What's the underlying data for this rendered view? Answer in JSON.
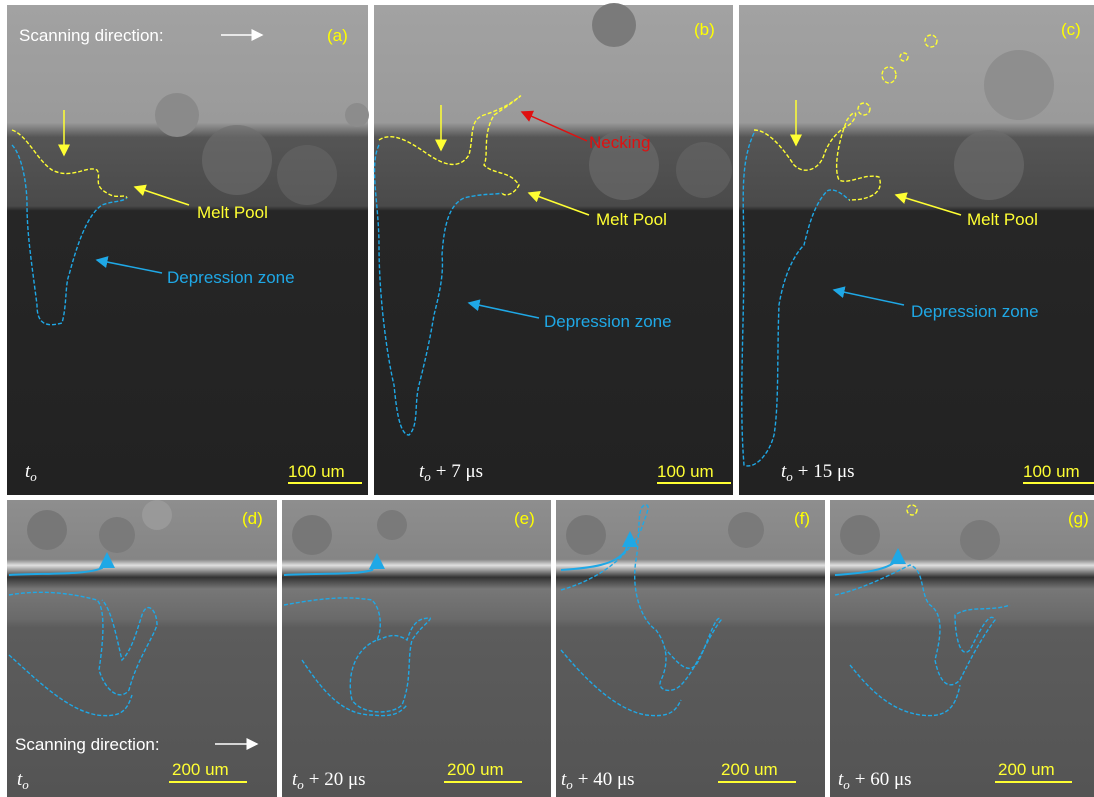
{
  "panels": [
    {
      "label": "(a)",
      "scanning_direction": "Scanning direction:",
      "melt_pool": "Melt Pool",
      "depression_zone": "Depression zone",
      "time": {
        "symbol": "t",
        "subscript": "o"
      },
      "scale_bar": "100 um"
    },
    {
      "label": "(b)",
      "necking": "Necking",
      "melt_pool": "Melt Pool",
      "depression_zone": "Depression zone",
      "time": {
        "symbol": "t",
        "subscript": "o",
        "suffix": "+ 7 μs"
      },
      "scale_bar": "100 um"
    },
    {
      "label": "(c)",
      "melt_pool": "Melt Pool",
      "depression_zone": "Depression zone",
      "time": {
        "symbol": "t",
        "subscript": "o",
        "suffix": "+ 15 μs"
      },
      "scale_bar": "100 um"
    },
    {
      "label": "(d)",
      "scanning_direction": "Scanning direction:",
      "time": {
        "symbol": "t",
        "subscript": "o"
      },
      "scale_bar": "200 um"
    },
    {
      "label": "(e)",
      "time": {
        "symbol": "t",
        "subscript": "o",
        "suffix": "+ 20 μs"
      },
      "scale_bar": "200 um"
    },
    {
      "label": "(f)",
      "time": {
        "symbol": "t",
        "subscript": "o",
        "suffix": "+ 40 μs"
      },
      "scale_bar": "200 um"
    },
    {
      "label": "(g)",
      "time": {
        "symbol": "t",
        "subscript": "o",
        "suffix": "+ 60 μs"
      },
      "scale_bar": "200 um"
    }
  ]
}
